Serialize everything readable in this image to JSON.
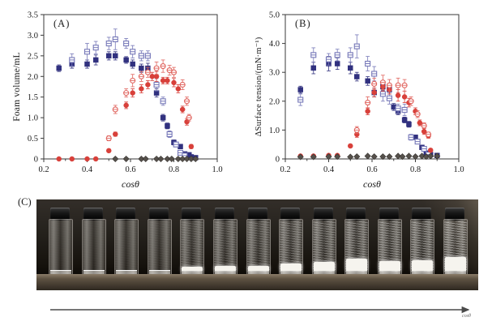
{
  "page": {
    "background": "#ffffff"
  },
  "panels": {
    "A": {
      "label": "(A)",
      "xlabel": "cosθ",
      "ylabel": "Foam volume/mL"
    },
    "B": {
      "label": "(B)",
      "xlabel": "cosθ",
      "ylabel": "ΔSurface tension/(mN·m⁻¹)"
    },
    "C": {
      "label": "(C)",
      "arrow_label": "cosθ"
    }
  },
  "colors": {
    "blue_filled": "#31317f",
    "blue_open": "#7678b8",
    "red_filled": "#d8403a",
    "red_open": "#e0645e",
    "gray_diamond": "#55504b",
    "axis": "#3a3a3a"
  },
  "chart_data": [
    {
      "type": "scatter",
      "panel_label": "(A)",
      "xlabel": "cosθ",
      "ylabel": "Foam volume/mL",
      "xlim": [
        0.2,
        1.0
      ],
      "ylim": [
        0,
        3.5
      ],
      "grid": false,
      "legend": "none",
      "xticks": {
        "values": [
          0.2,
          0.4,
          0.6,
          0.8,
          1.0
        ],
        "labels": [
          "0.2",
          "0.4",
          "0.6",
          "0.8",
          "1.0"
        ],
        "minor": [
          0.3,
          0.5,
          0.7,
          0.9
        ]
      },
      "yticks": {
        "values": [
          0,
          0.5,
          1.0,
          1.5,
          2.0,
          2.5,
          3.0,
          3.5
        ],
        "labels": [
          "0",
          "0.5",
          "1.0",
          "1.5",
          "2.0",
          "2.5",
          "3.0",
          "3.5"
        ]
      },
      "series": [
        {
          "name": "blue-filled-square",
          "marker": "square",
          "fill": "solid",
          "color": "#31317f",
          "points": [
            [
              0.27,
              2.2,
              0.08
            ],
            [
              0.33,
              2.3,
              0.1
            ],
            [
              0.4,
              2.3,
              0.1
            ],
            [
              0.44,
              2.4,
              0.12
            ],
            [
              0.5,
              2.5,
              0.1
            ],
            [
              0.53,
              2.5,
              0.1
            ],
            [
              0.58,
              2.4,
              0.08
            ],
            [
              0.61,
              2.3,
              0.1
            ],
            [
              0.65,
              2.2,
              0.1
            ],
            [
              0.68,
              2.2,
              0.12
            ],
            [
              0.72,
              1.6,
              0.1
            ],
            [
              0.75,
              1.0,
              0.08
            ],
            [
              0.77,
              0.8,
              0.07
            ],
            [
              0.8,
              0.4,
              0.06
            ],
            [
              0.83,
              0.3,
              0.05
            ],
            [
              0.85,
              0.12,
              0.04
            ],
            [
              0.87,
              0.1,
              0.04
            ],
            [
              0.88,
              0.05,
              0.03
            ],
            [
              0.9,
              0.03,
              0.02
            ]
          ]
        },
        {
          "name": "blue-open-square",
          "marker": "square",
          "fill": "open",
          "color": "#7678b8",
          "points": [
            [
              0.33,
              2.4,
              0.15
            ],
            [
              0.4,
              2.6,
              0.2
            ],
            [
              0.44,
              2.7,
              0.15
            ],
            [
              0.5,
              2.8,
              0.15
            ],
            [
              0.53,
              2.9,
              0.25
            ],
            [
              0.58,
              2.8,
              0.12
            ],
            [
              0.61,
              2.6,
              0.15
            ],
            [
              0.65,
              2.5,
              0.12
            ],
            [
              0.68,
              2.5,
              0.12
            ],
            [
              0.72,
              1.8,
              0.15
            ],
            [
              0.75,
              1.4,
              0.1
            ],
            [
              0.78,
              0.6,
              0.08
            ],
            [
              0.81,
              0.35,
              0.06
            ],
            [
              0.83,
              0.15,
              0.05
            ],
            [
              0.85,
              0.08,
              0.04
            ]
          ]
        },
        {
          "name": "red-filled-circle",
          "marker": "circle",
          "fill": "solid",
          "color": "#d8403a",
          "points": [
            [
              0.27,
              0,
              0
            ],
            [
              0.33,
              0,
              0
            ],
            [
              0.4,
              0,
              0
            ],
            [
              0.44,
              0,
              0
            ],
            [
              0.5,
              0.2,
              0.04
            ],
            [
              0.53,
              0.6,
              0.05
            ],
            [
              0.58,
              1.3,
              0.08
            ],
            [
              0.61,
              1.6,
              0.1
            ],
            [
              0.65,
              1.7,
              0.1
            ],
            [
              0.68,
              1.8,
              0.1
            ],
            [
              0.7,
              2.0,
              0.1
            ],
            [
              0.72,
              2.0,
              0.12
            ],
            [
              0.75,
              1.9,
              0.08
            ],
            [
              0.77,
              1.9,
              0.08
            ],
            [
              0.8,
              1.85,
              0.1
            ],
            [
              0.82,
              1.7,
              0.1
            ],
            [
              0.84,
              1.2,
              0.08
            ],
            [
              0.86,
              0.9,
              0.08
            ],
            [
              0.88,
              0.3,
              0.05
            ]
          ]
        },
        {
          "name": "red-open-circle",
          "marker": "circle",
          "fill": "open",
          "color": "#e0645e",
          "points": [
            [
              0.5,
              0.5,
              0.06
            ],
            [
              0.53,
              1.2,
              0.1
            ],
            [
              0.58,
              1.6,
              0.1
            ],
            [
              0.61,
              1.9,
              0.15
            ],
            [
              0.65,
              2.0,
              0.12
            ],
            [
              0.68,
              2.1,
              0.12
            ],
            [
              0.72,
              2.2,
              0.15
            ],
            [
              0.75,
              2.25,
              0.15
            ],
            [
              0.78,
              2.15,
              0.12
            ],
            [
              0.8,
              2.1,
              0.12
            ],
            [
              0.84,
              1.8,
              0.12
            ],
            [
              0.86,
              1.4,
              0.1
            ],
            [
              0.87,
              1.0,
              0.08
            ]
          ]
        },
        {
          "name": "gray-diamond",
          "marker": "diamond",
          "fill": "solid",
          "color": "#55504b",
          "points": [
            [
              0.53,
              0,
              0.03
            ],
            [
              0.58,
              0,
              0.03
            ],
            [
              0.65,
              0,
              0.03
            ],
            [
              0.67,
              0,
              0.03
            ],
            [
              0.72,
              0,
              0.03
            ],
            [
              0.74,
              0,
              0.03
            ],
            [
              0.77,
              0,
              0.03
            ],
            [
              0.79,
              0,
              0.03
            ],
            [
              0.82,
              0,
              0.03
            ],
            [
              0.84,
              0,
              0.03
            ],
            [
              0.86,
              0,
              0.03
            ],
            [
              0.88,
              0,
              0.03
            ],
            [
              0.9,
              0,
              0.03
            ]
          ]
        }
      ]
    },
    {
      "type": "scatter",
      "panel_label": "(B)",
      "xlabel": "cosθ",
      "ylabel": "ΔSurface tension/(mN·m⁻¹)",
      "xlim": [
        0.2,
        1.0
      ],
      "ylim": [
        0,
        5.0
      ],
      "grid": false,
      "legend": "none",
      "xticks": {
        "values": [
          0.2,
          0.4,
          0.6,
          0.8,
          1.0
        ],
        "labels": [
          "0.2",
          "0.4",
          "0.6",
          "0.8",
          "1.0"
        ],
        "minor": [
          0.3,
          0.5,
          0.7,
          0.9
        ]
      },
      "yticks": {
        "values": [
          0,
          1.0,
          2.0,
          3.0,
          4.0,
          5.0
        ],
        "labels": [
          "0",
          "1.0",
          "2.0",
          "3.0",
          "4.0",
          "5.0"
        ]
      },
      "series": [
        {
          "name": "blue-filled-square",
          "marker": "square",
          "fill": "solid",
          "color": "#31317f",
          "points": [
            [
              0.27,
              2.4,
              0.12
            ],
            [
              0.33,
              3.15,
              0.2
            ],
            [
              0.4,
              3.3,
              0.25
            ],
            [
              0.44,
              3.3,
              0.2
            ],
            [
              0.5,
              3.15,
              0.2
            ],
            [
              0.53,
              2.85,
              0.15
            ],
            [
              0.58,
              2.7,
              0.15
            ],
            [
              0.61,
              2.3,
              0.15
            ],
            [
              0.65,
              2.5,
              0.12
            ],
            [
              0.68,
              2.4,
              0.15
            ],
            [
              0.7,
              1.8,
              0.12
            ],
            [
              0.72,
              1.65,
              0.12
            ],
            [
              0.75,
              1.35,
              0.1
            ],
            [
              0.77,
              1.2,
              0.1
            ],
            [
              0.8,
              0.75,
              0.08
            ],
            [
              0.83,
              0.4,
              0.06
            ],
            [
              0.85,
              0.2,
              0.05
            ],
            [
              0.87,
              0.15,
              0.05
            ],
            [
              0.9,
              0.12,
              0.04
            ]
          ]
        },
        {
          "name": "blue-open-square",
          "marker": "square",
          "fill": "open",
          "color": "#7678b8",
          "points": [
            [
              0.27,
              2.05,
              0.2
            ],
            [
              0.33,
              3.6,
              0.25
            ],
            [
              0.4,
              3.45,
              0.2
            ],
            [
              0.44,
              3.6,
              0.2
            ],
            [
              0.5,
              3.6,
              0.25
            ],
            [
              0.53,
              3.9,
              0.4
            ],
            [
              0.58,
              3.3,
              0.25
            ],
            [
              0.61,
              2.95,
              0.25
            ],
            [
              0.65,
              2.25,
              0.25
            ],
            [
              0.68,
              2.1,
              0.2
            ],
            [
              0.72,
              1.75,
              0.15
            ],
            [
              0.75,
              1.7,
              0.2
            ],
            [
              0.78,
              0.75,
              0.1
            ],
            [
              0.81,
              0.6,
              0.08
            ],
            [
              0.84,
              0.35,
              0.06
            ],
            [
              0.86,
              0.15,
              0.05
            ]
          ]
        },
        {
          "name": "red-filled-circle",
          "marker": "circle",
          "fill": "solid",
          "color": "#d8403a",
          "points": [
            [
              0.27,
              0.1,
              0.04
            ],
            [
              0.33,
              0.1,
              0.04
            ],
            [
              0.4,
              0.12,
              0.04
            ],
            [
              0.44,
              0.12,
              0.04
            ],
            [
              0.5,
              0.45,
              0.06
            ],
            [
              0.53,
              0.85,
              0.1
            ],
            [
              0.58,
              1.65,
              0.12
            ],
            [
              0.61,
              2.3,
              0.15
            ],
            [
              0.65,
              2.5,
              0.15
            ],
            [
              0.68,
              2.4,
              0.15
            ],
            [
              0.72,
              2.2,
              0.2
            ],
            [
              0.75,
              2.15,
              0.2
            ],
            [
              0.77,
              1.95,
              0.15
            ],
            [
              0.8,
              1.65,
              0.12
            ],
            [
              0.82,
              1.25,
              0.1
            ],
            [
              0.84,
              0.95,
              0.1
            ],
            [
              0.86,
              0.8,
              0.08
            ],
            [
              0.87,
              0.3,
              0.06
            ]
          ]
        },
        {
          "name": "red-open-circle",
          "marker": "circle",
          "fill": "open",
          "color": "#e0645e",
          "points": [
            [
              0.53,
              1.0,
              0.12
            ],
            [
              0.58,
              1.95,
              0.2
            ],
            [
              0.61,
              2.6,
              0.2
            ],
            [
              0.65,
              2.65,
              0.25
            ],
            [
              0.68,
              2.55,
              0.2
            ],
            [
              0.72,
              2.55,
              0.25
            ],
            [
              0.75,
              2.55,
              0.2
            ],
            [
              0.78,
              2.0,
              0.15
            ],
            [
              0.81,
              1.55,
              0.12
            ],
            [
              0.84,
              1.15,
              0.1
            ],
            [
              0.86,
              0.85,
              0.08
            ]
          ]
        },
        {
          "name": "gray-diamond",
          "marker": "diamond",
          "fill": "solid",
          "color": "#55504b",
          "points": [
            [
              0.27,
              0.07,
              0.03
            ],
            [
              0.33,
              0.07,
              0.03
            ],
            [
              0.4,
              0.08,
              0.03
            ],
            [
              0.44,
              0.08,
              0.03
            ],
            [
              0.5,
              0.07,
              0.03
            ],
            [
              0.53,
              0.08,
              0.03
            ],
            [
              0.58,
              0.1,
              0.03
            ],
            [
              0.61,
              0.08,
              0.03
            ],
            [
              0.65,
              0.08,
              0.03
            ],
            [
              0.68,
              0.08,
              0.03
            ],
            [
              0.72,
              0.1,
              0.03
            ],
            [
              0.74,
              0.08,
              0.03
            ],
            [
              0.77,
              0.1,
              0.03
            ],
            [
              0.8,
              0.08,
              0.03
            ],
            [
              0.83,
              0.1,
              0.03
            ],
            [
              0.85,
              0.08,
              0.03
            ],
            [
              0.87,
              0.1,
              0.03
            ],
            [
              0.9,
              0.1,
              0.03
            ]
          ]
        }
      ]
    }
  ],
  "photo": {
    "vial_count": 13,
    "vials": [
      {
        "foam": 0,
        "haze": 0.02
      },
      {
        "foam": 0,
        "haze": 0.03
      },
      {
        "foam": 0,
        "haze": 0.05
      },
      {
        "foam": 0,
        "haze": 0.08
      },
      {
        "foam": 5,
        "haze": 0.25
      },
      {
        "foam": 6,
        "haze": 0.3
      },
      {
        "foam": 6,
        "haze": 0.35
      },
      {
        "foam": 9,
        "haze": 0.45
      },
      {
        "foam": 11,
        "haze": 0.5
      },
      {
        "foam": 15,
        "haze": 0.55
      },
      {
        "foam": 12,
        "haze": 0.6
      },
      {
        "foam": 13,
        "haze": 0.65
      },
      {
        "foam": 17,
        "haze": 0.7
      }
    ]
  }
}
